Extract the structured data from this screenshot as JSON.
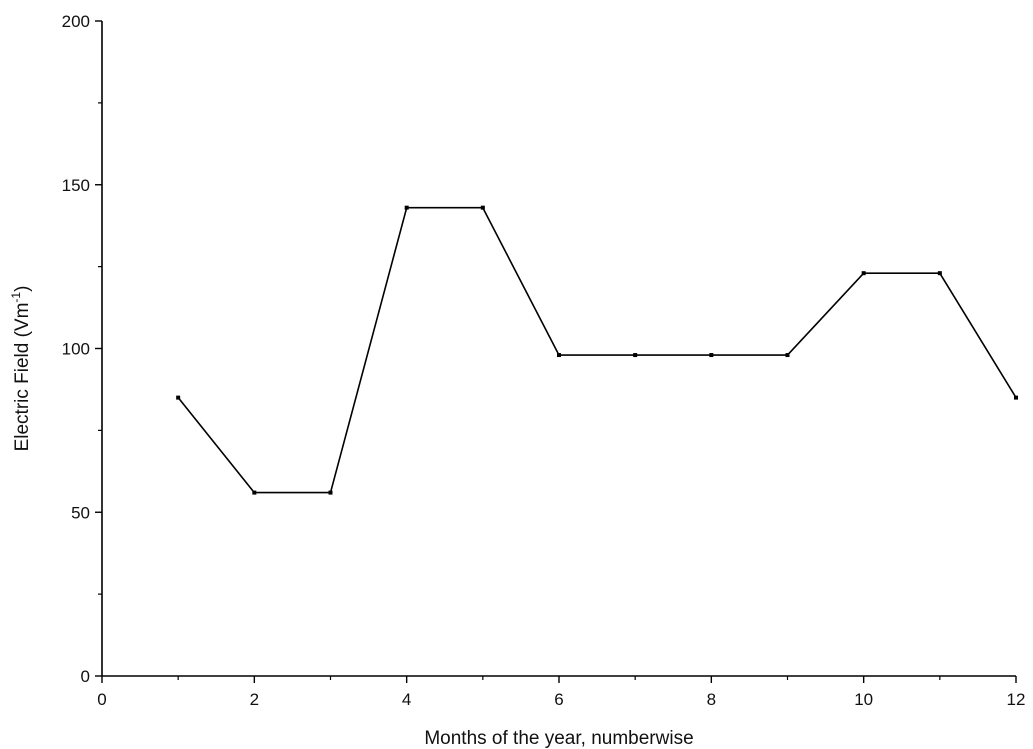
{
  "chart_data": {
    "type": "line",
    "title": "",
    "xlabel": "Months of the year, numberwise",
    "ylabel_main": "Electric Field (Vm",
    "ylabel_sup": "-1",
    "ylabel_end": ")",
    "xlim": [
      0,
      12
    ],
    "ylim": [
      0,
      200
    ],
    "xticks": [
      0,
      2,
      4,
      6,
      8,
      10,
      12
    ],
    "yticks": [
      0,
      50,
      100,
      150,
      200
    ],
    "grid": false,
    "series": [
      {
        "x": [
          1,
          2,
          3,
          4,
          5,
          6,
          7,
          8,
          9,
          10,
          11,
          12
        ],
        "values": [
          85,
          56,
          56,
          143,
          143,
          98,
          98,
          98,
          98,
          123,
          123,
          85
        ]
      }
    ],
    "colors": {
      "line": "#000000",
      "axis": "#000000"
    }
  }
}
